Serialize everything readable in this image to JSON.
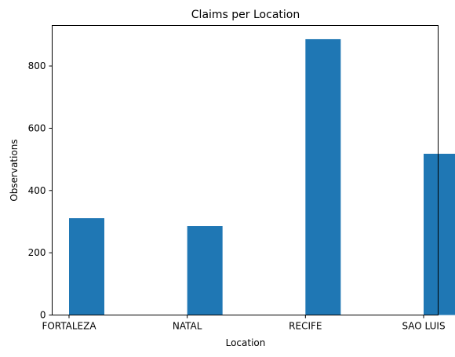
{
  "chart_data": {
    "type": "bar",
    "title": "Claims per Location",
    "xlabel": "Location",
    "ylabel": "Observations",
    "categories": [
      "FORTALEZA",
      "NATAL",
      "RECIFE",
      "SAO LUIS"
    ],
    "values": [
      311,
      286,
      886,
      518
    ],
    "yticks": [
      0,
      200,
      400,
      600,
      800
    ],
    "ylim": [
      0,
      930
    ],
    "grid": false,
    "bar_color": "#1f77b4"
  }
}
